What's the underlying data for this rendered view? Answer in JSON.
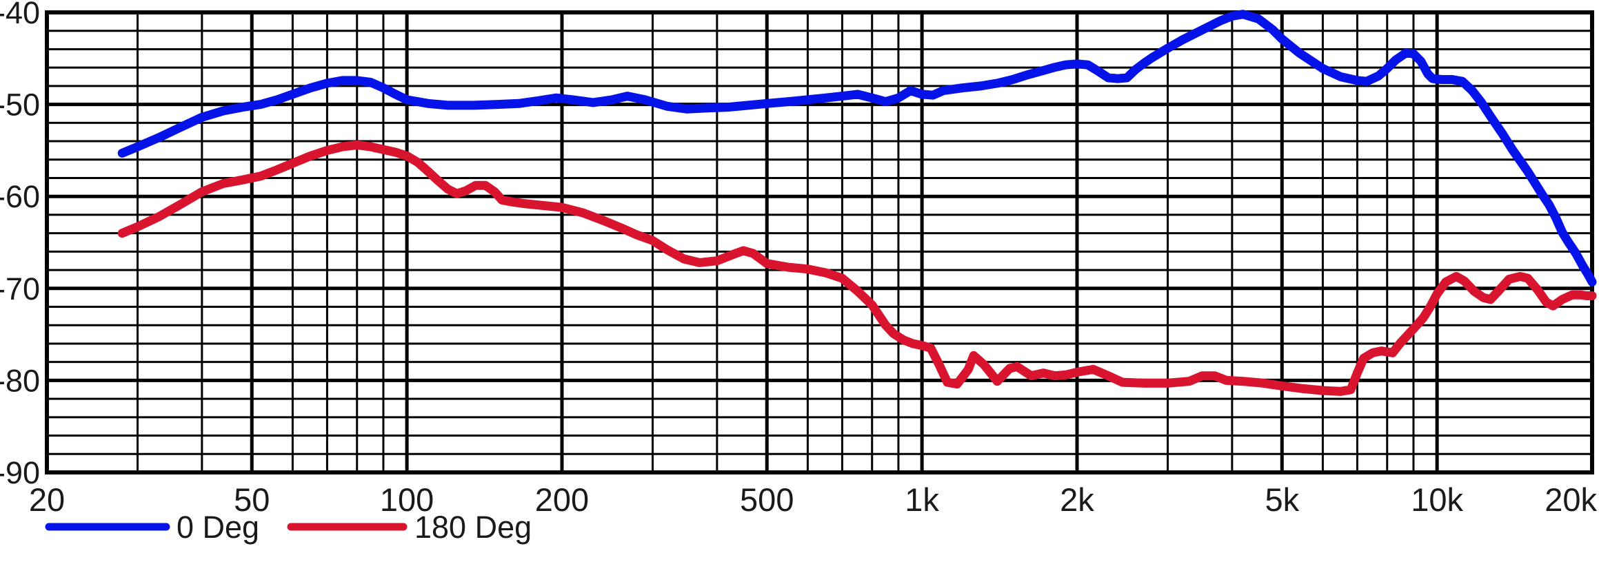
{
  "chart_data": {
    "type": "line",
    "title": "",
    "x_scale": "log",
    "xlim": [
      20,
      20000
    ],
    "ylim": [
      -90,
      -40
    ],
    "grid": "on",
    "legend_position": "bottom-left",
    "x_tick_labels": [
      {
        "f": 20,
        "label": "20"
      },
      {
        "f": 50,
        "label": "50"
      },
      {
        "f": 100,
        "label": "100"
      },
      {
        "f": 200,
        "label": "200"
      },
      {
        "f": 500,
        "label": "500"
      },
      {
        "f": 1000,
        "label": "1k"
      },
      {
        "f": 2000,
        "label": "2k"
      },
      {
        "f": 5000,
        "label": "5k"
      },
      {
        "f": 10000,
        "label": "10k"
      },
      {
        "f": 20000,
        "label": "20k"
      }
    ],
    "x_minor_gridlines": [
      30,
      40,
      60,
      70,
      80,
      90,
      300,
      400,
      600,
      700,
      800,
      900,
      3000,
      4000,
      6000,
      7000,
      8000,
      9000
    ],
    "y_tick_labels": [
      {
        "v": -40,
        "label": "-40"
      },
      {
        "v": -50,
        "label": "-50"
      },
      {
        "v": -60,
        "label": "-60"
      },
      {
        "v": -70,
        "label": "-70"
      },
      {
        "v": -80,
        "label": "-80"
      },
      {
        "v": -90,
        "label": "-90"
      }
    ],
    "y_minor_step_db": 2,
    "colors": {
      "series_0deg": "#0613E8",
      "series_180deg": "#D9142E",
      "grid": "#000000",
      "text": "#1a1a1a"
    },
    "legend": [
      {
        "name": "0 Deg",
        "color": "#0613E8"
      },
      {
        "name": "180 Deg",
        "color": "#D9142E"
      }
    ],
    "series": [
      {
        "name": "0 Deg",
        "color": "#0613E8",
        "points": [
          [
            28,
            -55.3
          ],
          [
            30,
            -54.6
          ],
          [
            33,
            -53.6
          ],
          [
            36,
            -52.6
          ],
          [
            40,
            -51.4
          ],
          [
            44,
            -50.7
          ],
          [
            48,
            -50.3
          ],
          [
            52,
            -50.0
          ],
          [
            56,
            -49.5
          ],
          [
            60,
            -48.9
          ],
          [
            65,
            -48.2
          ],
          [
            70,
            -47.7
          ],
          [
            75,
            -47.4
          ],
          [
            80,
            -47.4
          ],
          [
            85,
            -47.6
          ],
          [
            90,
            -48.2
          ],
          [
            95,
            -48.9
          ],
          [
            100,
            -49.5
          ],
          [
            110,
            -49.9
          ],
          [
            120,
            -50.1
          ],
          [
            135,
            -50.1
          ],
          [
            150,
            -50.0
          ],
          [
            165,
            -49.9
          ],
          [
            180,
            -49.6
          ],
          [
            195,
            -49.3
          ],
          [
            210,
            -49.5
          ],
          [
            230,
            -49.8
          ],
          [
            250,
            -49.5
          ],
          [
            268,
            -49.1
          ],
          [
            290,
            -49.5
          ],
          [
            320,
            -50.2
          ],
          [
            350,
            -50.5
          ],
          [
            380,
            -50.4
          ],
          [
            420,
            -50.3
          ],
          [
            460,
            -50.1
          ],
          [
            500,
            -49.9
          ],
          [
            550,
            -49.7
          ],
          [
            600,
            -49.5
          ],
          [
            650,
            -49.3
          ],
          [
            700,
            -49.1
          ],
          [
            750,
            -48.9
          ],
          [
            800,
            -49.3
          ],
          [
            850,
            -49.7
          ],
          [
            900,
            -49.3
          ],
          [
            950,
            -48.5
          ],
          [
            1000,
            -48.9
          ],
          [
            1050,
            -49.0
          ],
          [
            1100,
            -48.5
          ],
          [
            1200,
            -48.2
          ],
          [
            1300,
            -48.0
          ],
          [
            1400,
            -47.7
          ],
          [
            1500,
            -47.3
          ],
          [
            1600,
            -46.8
          ],
          [
            1700,
            -46.4
          ],
          [
            1800,
            -46.0
          ],
          [
            1900,
            -45.7
          ],
          [
            2000,
            -45.6
          ],
          [
            2100,
            -45.7
          ],
          [
            2200,
            -46.4
          ],
          [
            2300,
            -47.1
          ],
          [
            2400,
            -47.2
          ],
          [
            2500,
            -47.1
          ],
          [
            2600,
            -46.2
          ],
          [
            2700,
            -45.5
          ],
          [
            2800,
            -44.9
          ],
          [
            3000,
            -43.9
          ],
          [
            3200,
            -43.0
          ],
          [
            3500,
            -41.9
          ],
          [
            3800,
            -40.9
          ],
          [
            4000,
            -40.4
          ],
          [
            4200,
            -40.2
          ],
          [
            4500,
            -40.7
          ],
          [
            4800,
            -41.9
          ],
          [
            5000,
            -42.9
          ],
          [
            5400,
            -44.4
          ],
          [
            6000,
            -46.1
          ],
          [
            6500,
            -47.0
          ],
          [
            7000,
            -47.4
          ],
          [
            7300,
            -47.5
          ],
          [
            7700,
            -46.9
          ],
          [
            8000,
            -46.1
          ],
          [
            8300,
            -45.2
          ],
          [
            8700,
            -44.4
          ],
          [
            9000,
            -44.5
          ],
          [
            9300,
            -45.3
          ],
          [
            9600,
            -46.7
          ],
          [
            9800,
            -47.2
          ],
          [
            10200,
            -47.3
          ],
          [
            10700,
            -47.3
          ],
          [
            11200,
            -47.5
          ],
          [
            11700,
            -48.5
          ],
          [
            12200,
            -49.8
          ],
          [
            12700,
            -51.3
          ],
          [
            13400,
            -53.2
          ],
          [
            14000,
            -54.9
          ],
          [
            15000,
            -57.3
          ],
          [
            16000,
            -59.8
          ],
          [
            16500,
            -60.9
          ],
          [
            17000,
            -62.3
          ],
          [
            17500,
            -63.9
          ],
          [
            18000,
            -65.0
          ],
          [
            18600,
            -66.2
          ],
          [
            19200,
            -67.6
          ],
          [
            19600,
            -68.4
          ],
          [
            20000,
            -69.3
          ]
        ]
      },
      {
        "name": "180 Deg",
        "color": "#D9142E",
        "points": [
          [
            28,
            -64.0
          ],
          [
            30,
            -63.3
          ],
          [
            33,
            -62.2
          ],
          [
            36,
            -61.0
          ],
          [
            40,
            -59.5
          ],
          [
            44,
            -58.6
          ],
          [
            48,
            -58.2
          ],
          [
            52,
            -57.8
          ],
          [
            56,
            -57.1
          ],
          [
            60,
            -56.4
          ],
          [
            65,
            -55.6
          ],
          [
            70,
            -55.0
          ],
          [
            75,
            -54.6
          ],
          [
            80,
            -54.4
          ],
          [
            85,
            -54.6
          ],
          [
            90,
            -54.9
          ],
          [
            95,
            -55.2
          ],
          [
            100,
            -55.6
          ],
          [
            105,
            -56.3
          ],
          [
            110,
            -57.3
          ],
          [
            115,
            -58.3
          ],
          [
            120,
            -59.2
          ],
          [
            125,
            -59.7
          ],
          [
            130,
            -59.4
          ],
          [
            136,
            -58.8
          ],
          [
            142,
            -58.8
          ],
          [
            148,
            -59.5
          ],
          [
            153,
            -60.4
          ],
          [
            160,
            -60.6
          ],
          [
            170,
            -60.8
          ],
          [
            185,
            -61.0
          ],
          [
            200,
            -61.2
          ],
          [
            220,
            -61.8
          ],
          [
            240,
            -62.6
          ],
          [
            260,
            -63.4
          ],
          [
            280,
            -64.2
          ],
          [
            300,
            -64.8
          ],
          [
            320,
            -65.8
          ],
          [
            345,
            -66.8
          ],
          [
            370,
            -67.2
          ],
          [
            400,
            -67.0
          ],
          [
            430,
            -66.3
          ],
          [
            450,
            -65.9
          ],
          [
            470,
            -66.2
          ],
          [
            500,
            -67.3
          ],
          [
            550,
            -67.7
          ],
          [
            600,
            -67.9
          ],
          [
            650,
            -68.3
          ],
          [
            700,
            -68.9
          ],
          [
            750,
            -70.3
          ],
          [
            800,
            -71.8
          ],
          [
            850,
            -74.0
          ],
          [
            880,
            -74.9
          ],
          [
            920,
            -75.6
          ],
          [
            960,
            -76.0
          ],
          [
            1000,
            -76.2
          ],
          [
            1040,
            -76.5
          ],
          [
            1080,
            -78.3
          ],
          [
            1120,
            -80.2
          ],
          [
            1170,
            -80.4
          ],
          [
            1230,
            -78.8
          ],
          [
            1260,
            -77.3
          ],
          [
            1320,
            -78.3
          ],
          [
            1400,
            -80.1
          ],
          [
            1480,
            -78.7
          ],
          [
            1530,
            -78.5
          ],
          [
            1630,
            -79.5
          ],
          [
            1720,
            -79.2
          ],
          [
            1810,
            -79.5
          ],
          [
            1900,
            -79.4
          ],
          [
            2000,
            -79.1
          ],
          [
            2150,
            -78.8
          ],
          [
            2300,
            -79.5
          ],
          [
            2450,
            -80.2
          ],
          [
            2700,
            -80.3
          ],
          [
            3000,
            -80.3
          ],
          [
            3300,
            -80.1
          ],
          [
            3500,
            -79.5
          ],
          [
            3700,
            -79.5
          ],
          [
            3900,
            -80.0
          ],
          [
            4200,
            -80.1
          ],
          [
            4600,
            -80.3
          ],
          [
            5000,
            -80.6
          ],
          [
            5500,
            -80.9
          ],
          [
            6000,
            -81.1
          ],
          [
            6500,
            -81.2
          ],
          [
            6800,
            -81.0
          ],
          [
            7000,
            -79.2
          ],
          [
            7200,
            -77.6
          ],
          [
            7500,
            -77.0
          ],
          [
            7800,
            -76.8
          ],
          [
            8000,
            -76.9
          ],
          [
            8200,
            -77.0
          ],
          [
            8500,
            -75.9
          ],
          [
            9000,
            -74.4
          ],
          [
            9400,
            -73.2
          ],
          [
            9700,
            -72.0
          ],
          [
            10000,
            -70.6
          ],
          [
            10400,
            -69.3
          ],
          [
            10900,
            -68.7
          ],
          [
            11300,
            -69.2
          ],
          [
            11800,
            -70.3
          ],
          [
            12300,
            -71.0
          ],
          [
            12700,
            -71.2
          ],
          [
            13200,
            -70.2
          ],
          [
            13800,
            -69.0
          ],
          [
            14500,
            -68.7
          ],
          [
            15000,
            -68.9
          ],
          [
            15700,
            -70.2
          ],
          [
            16300,
            -71.5
          ],
          [
            16800,
            -71.9
          ],
          [
            17500,
            -71.2
          ],
          [
            18300,
            -70.7
          ],
          [
            19000,
            -70.7
          ],
          [
            19500,
            -70.8
          ],
          [
            20000,
            -70.8
          ]
        ]
      }
    ]
  }
}
